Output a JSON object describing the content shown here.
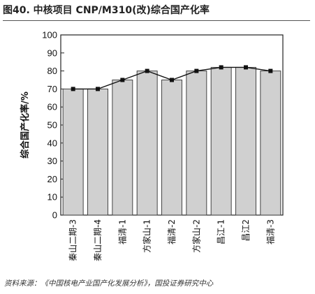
{
  "figure": {
    "title": "图40. 中核项目  CNP/M310(改)综合国产化率",
    "source": "资料来源：《中国核电产业国产化发展分析》，国投证券研究中心"
  },
  "chart_data": {
    "type": "bar",
    "categories": [
      "秦山二期-3",
      "秦山二期-4",
      "福清-1",
      "方家山-1",
      "福清-2",
      "方家山-2",
      "昌江-1",
      "昌江2",
      "福清-3"
    ],
    "series": [
      {
        "values": [
          70,
          70,
          75,
          80,
          75,
          80,
          82,
          82,
          80
        ]
      }
    ],
    "overlay_line": true,
    "ylabel": "综合国产化率/%",
    "xlabel": "",
    "ylim": [
      0,
      100
    ],
    "yticks": [
      0,
      10,
      20,
      30,
      40,
      50,
      60,
      70,
      80,
      90,
      100
    ],
    "grid": false,
    "colors": {
      "bar_fill": "#d0d0d0",
      "bar_stroke": "#444444",
      "line": "#111111",
      "marker": "#111111"
    }
  }
}
